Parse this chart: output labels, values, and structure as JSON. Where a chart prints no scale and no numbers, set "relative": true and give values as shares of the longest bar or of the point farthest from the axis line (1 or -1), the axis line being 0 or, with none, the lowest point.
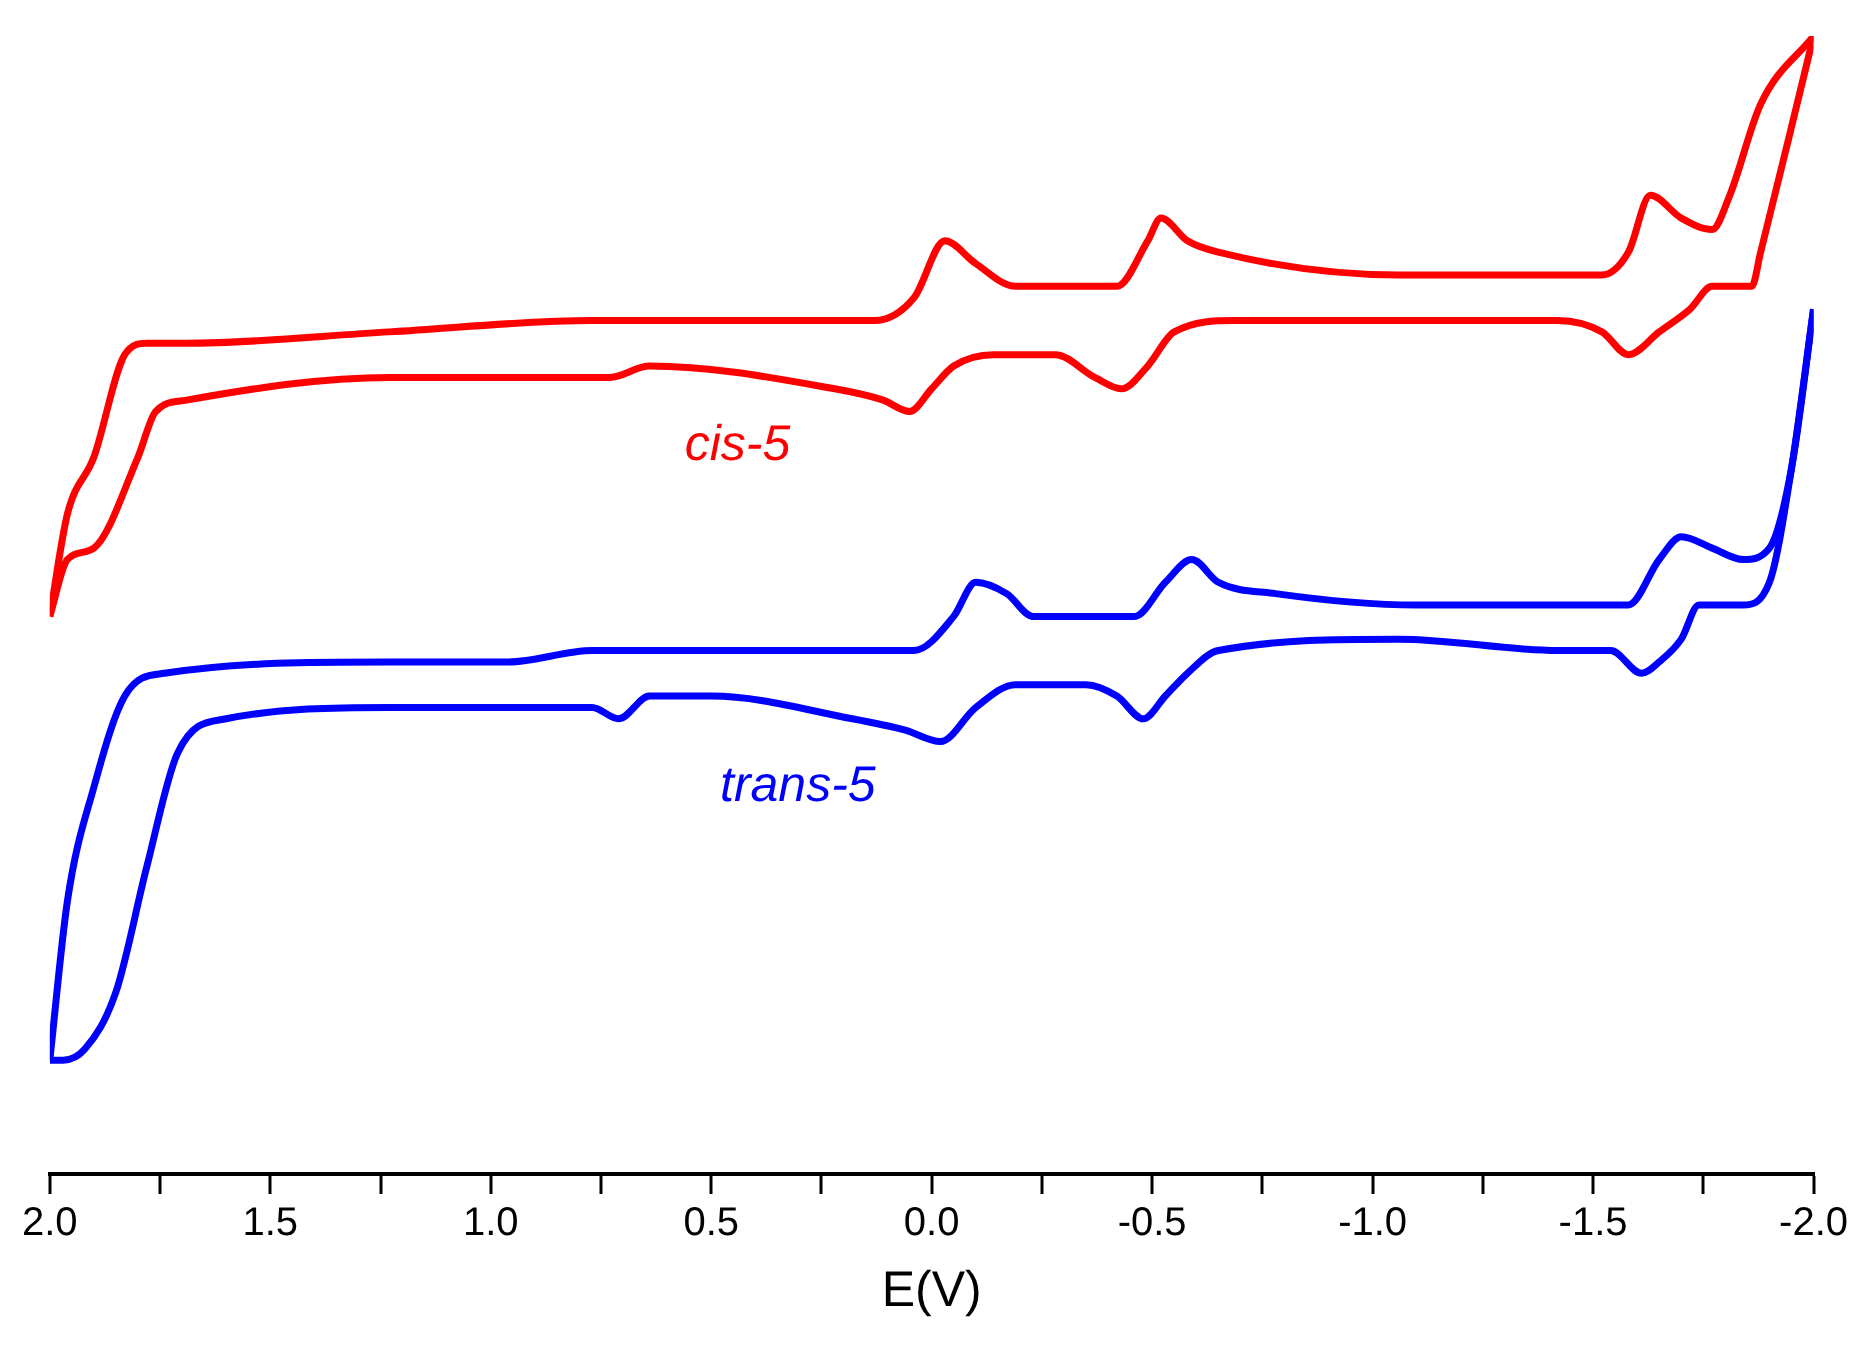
{
  "chart_data": {
    "type": "line",
    "relative": true,
    "xlabel": "E(V)",
    "xlim": [
      2.0,
      -2.0
    ],
    "xticks": [
      {
        "value": 2.0,
        "label": "2.0"
      },
      {
        "value": 1.75,
        "label": null
      },
      {
        "value": 1.5,
        "label": "1.5"
      },
      {
        "value": 1.25,
        "label": null
      },
      {
        "value": 1.0,
        "label": "1.0"
      },
      {
        "value": 0.75,
        "label": null
      },
      {
        "value": 0.5,
        "label": "0.5"
      },
      {
        "value": 0.25,
        "label": null
      },
      {
        "value": 0.0,
        "label": "0.0"
      },
      {
        "value": -0.25,
        "label": null
      },
      {
        "value": -0.5,
        "label": "-0.5"
      },
      {
        "value": -0.75,
        "label": null
      },
      {
        "value": -1.0,
        "label": "-1.0"
      },
      {
        "value": -1.25,
        "label": null
      },
      {
        "value": -1.5,
        "label": "-1.5"
      },
      {
        "value": -1.75,
        "label": null
      },
      {
        "value": -2.0,
        "label": "-2.0"
      }
    ],
    "tick_labels": "x",
    "grid": false,
    "legend": false,
    "series": [
      {
        "name": "cis-5",
        "color": "#ff0000",
        "x": [
          2.0,
          1.96,
          1.9,
          1.83,
          1.78,
          1.69,
          1.23,
          0.77,
          0.13,
          0.04,
          -0.03,
          -0.1,
          -0.19,
          -0.42,
          -0.49,
          -0.52,
          -0.58,
          -0.65,
          -1.06,
          -1.52,
          -1.58,
          -1.63,
          -1.7,
          -1.77,
          -1.81,
          -1.88,
          -2.0
        ],
        "values": [
          0.49,
          0.58,
          0.63,
          0.72,
          0.73,
          0.73,
          0.74,
          0.75,
          0.75,
          0.77,
          0.82,
          0.8,
          0.78,
          0.78,
          0.82,
          0.84,
          0.82,
          0.81,
          0.79,
          0.79,
          0.81,
          0.86,
          0.84,
          0.83,
          0.86,
          0.94,
          1.0
        ]
      },
      {
        "color": "#ff0000",
        "x": [
          -2.0,
          -1.95,
          -1.88,
          -1.86,
          -1.77,
          -1.72,
          -1.65,
          -1.58,
          -1.52,
          -1.42,
          -1.06,
          -0.69,
          -0.55,
          -0.49,
          -0.43,
          -0.37,
          -0.28,
          -0.14,
          -0.05,
          0.0,
          0.05,
          0.11,
          0.22,
          0.64,
          0.73,
          0.77,
          1.23,
          1.69,
          1.76,
          1.8,
          1.9,
          1.96,
          2.0
        ],
        "values": [
          1.0,
          0.92,
          0.81,
          0.78,
          0.78,
          0.76,
          0.74,
          0.72,
          0.74,
          0.75,
          0.75,
          0.75,
          0.74,
          0.71,
          0.69,
          0.7,
          0.72,
          0.72,
          0.71,
          0.69,
          0.67,
          0.68,
          0.69,
          0.71,
          0.7,
          0.7,
          0.7,
          0.68,
          0.67,
          0.63,
          0.55,
          0.54,
          0.49
        ]
      },
      {
        "name": "trans-5",
        "color": "#0000ff",
        "x": [
          2.0,
          1.96,
          1.9,
          1.83,
          1.74,
          1.23,
          0.96,
          0.77,
          0.04,
          -0.05,
          -0.1,
          -0.17,
          -0.23,
          -0.46,
          -0.53,
          -0.59,
          -0.65,
          -0.78,
          -1.1,
          -1.24,
          -1.33,
          -1.58,
          -1.65,
          -1.7,
          -1.77,
          -1.84,
          -1.9,
          -1.95,
          -2.0
        ],
        "values": [
          0.1,
          0.24,
          0.34,
          0.42,
          0.44,
          0.45,
          0.45,
          0.46,
          0.46,
          0.49,
          0.52,
          0.51,
          0.49,
          0.49,
          0.52,
          0.54,
          0.52,
          0.51,
          0.5,
          0.5,
          0.5,
          0.5,
          0.54,
          0.56,
          0.55,
          0.54,
          0.55,
          0.62,
          0.76
        ]
      },
      {
        "color": "#0000ff",
        "x": [
          -2.0,
          -1.95,
          -1.9,
          -1.84,
          -1.74,
          -1.7,
          -1.65,
          -1.61,
          -1.54,
          -1.42,
          -1.06,
          -0.65,
          -0.58,
          -0.53,
          -0.48,
          -0.42,
          -0.35,
          -0.19,
          -0.1,
          -0.02,
          0.06,
          0.18,
          0.5,
          0.64,
          0.71,
          0.77,
          1.23,
          1.6,
          1.71,
          1.78,
          1.85,
          1.92,
          1.97,
          2.0
        ],
        "values": [
          0.76,
          0.62,
          0.52,
          0.5,
          0.5,
          0.47,
          0.45,
          0.44,
          0.46,
          0.46,
          0.47,
          0.46,
          0.44,
          0.42,
          0.4,
          0.42,
          0.43,
          0.43,
          0.41,
          0.38,
          0.39,
          0.4,
          0.42,
          0.42,
          0.4,
          0.41,
          0.41,
          0.4,
          0.37,
          0.27,
          0.16,
          0.11,
          0.1,
          0.1
        ]
      }
    ]
  }
}
